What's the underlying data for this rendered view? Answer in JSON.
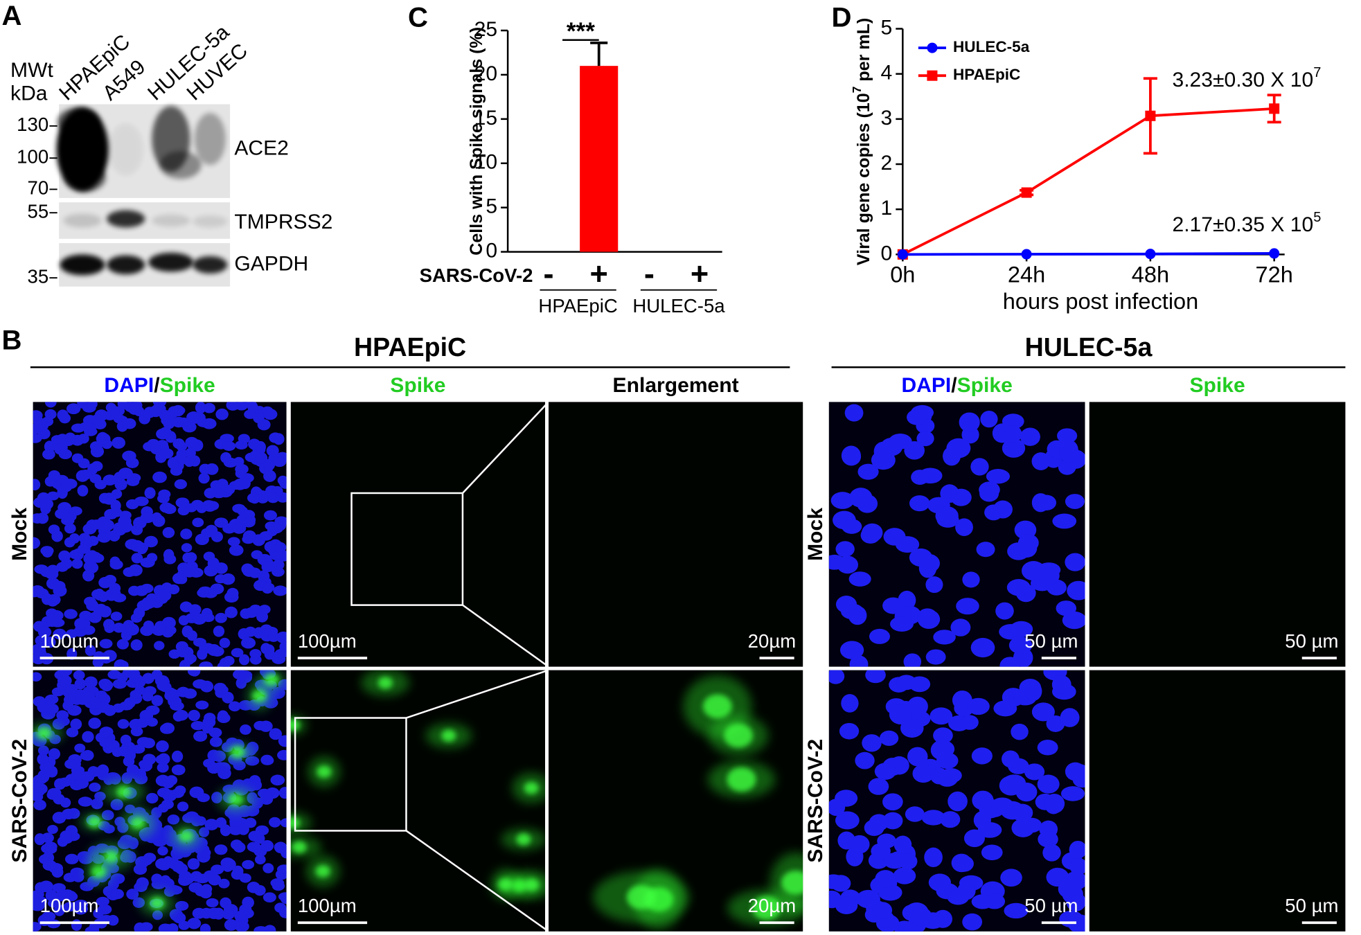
{
  "panel_a": {
    "label": "A",
    "mw_header": [
      "MWt",
      "kDa"
    ],
    "lanes": [
      "HPAEpiC",
      "A549",
      "HULEC-5a",
      "HUVEC"
    ],
    "markers": [
      "130",
      "100",
      "70",
      "55",
      "35"
    ],
    "blots": [
      "ACE2",
      "TMPRSS2",
      "GAPDH"
    ]
  },
  "chart_data": [
    {
      "type": "bar",
      "label": "C",
      "ylabel": "Cells with Spike signals (%)",
      "row_label": "SARS-CoV-2",
      "categories": [
        "-",
        "+",
        "-",
        "+"
      ],
      "groups": [
        "HPAEpiC",
        "HULEC-5a"
      ],
      "values": [
        0,
        21,
        0,
        0
      ],
      "errors": [
        null,
        2.6,
        null,
        null
      ],
      "color": "#ff0000",
      "ylim": [
        0,
        25
      ],
      "yticks": [
        0,
        5,
        10,
        15,
        20,
        25
      ],
      "annotation": "***"
    },
    {
      "type": "line",
      "label": "D",
      "categories": [
        "0h",
        "24h",
        "48h",
        "72h"
      ],
      "xlabel": "hours post infection",
      "ylabel": [
        "Viral gene copies (10",
        "7",
        " per mL)"
      ],
      "ylim": [
        0,
        5
      ],
      "yticks": [
        0,
        1,
        2,
        3,
        4,
        5
      ],
      "legend": "upper left",
      "series": [
        {
          "name": "HULEC-5a",
          "color": "#0000ff",
          "marker": "circle",
          "values": [
            0,
            0.005,
            0.01,
            0.0217
          ],
          "annotation": {
            "text": "2.17±0.35 X 10",
            "sup": "5"
          }
        },
        {
          "name": "HPAEpiC",
          "color": "#ff0000",
          "marker": "square",
          "values": [
            0,
            1.37,
            3.07,
            3.23
          ],
          "errors": [
            0,
            0.05,
            0.83,
            0.3
          ],
          "annotation": {
            "text": "3.23±0.30 X 10",
            "sup": "7"
          }
        }
      ]
    }
  ],
  "panel_b": {
    "label": "B",
    "groups": [
      {
        "title": "HPAEpiC",
        "columns": [
          [
            {
              "text": "DAPI",
              "color": "#0000ff"
            },
            {
              "text": "/",
              "color": "#000000"
            },
            {
              "text": "Spike",
              "color": "#22cc22"
            }
          ],
          [
            {
              "text": "Spike",
              "color": "#22cc22"
            }
          ],
          [
            {
              "text": "Enlargement",
              "color": "#000000"
            }
          ]
        ],
        "rows": [
          "Mock",
          "SARS-CoV-2"
        ],
        "scale_bars": [
          [
            "100µm",
            "100µm",
            "20µm"
          ],
          [
            "100µm",
            "100µm",
            "20µm"
          ]
        ]
      },
      {
        "title": "HULEC-5a",
        "columns": [
          [
            {
              "text": "DAPI",
              "color": "#0000ff"
            },
            {
              "text": "/",
              "color": "#000000"
            },
            {
              "text": "Spike",
              "color": "#22cc22"
            }
          ],
          [
            {
              "text": "Spike",
              "color": "#22cc22"
            }
          ]
        ],
        "rows": [
          "Mock",
          "SARS-CoV-2"
        ],
        "scale_bars": [
          [
            "50 µm",
            "50 µm"
          ],
          [
            "50 µm",
            "50 µm"
          ]
        ]
      }
    ]
  }
}
